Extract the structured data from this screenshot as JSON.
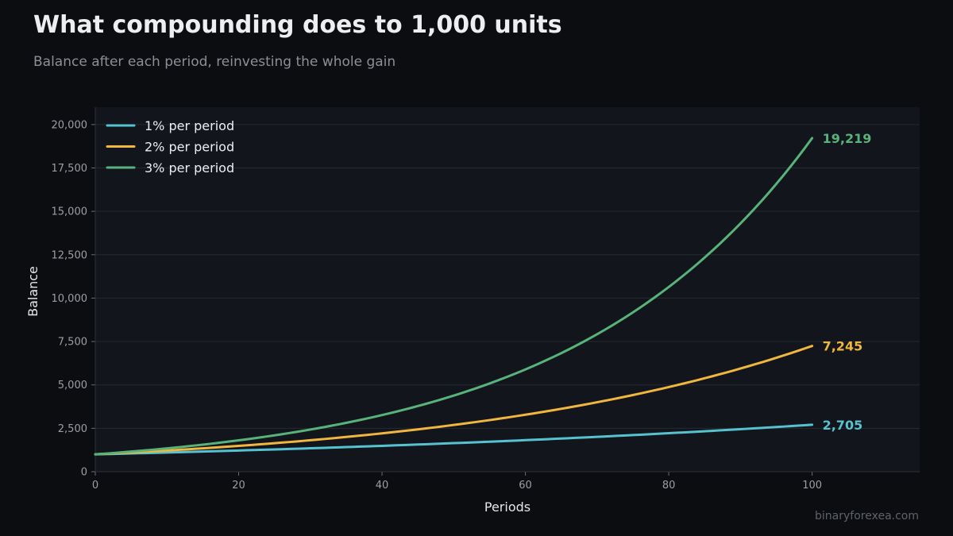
{
  "page": {
    "title": "What compounding does to 1,000 units",
    "subtitle": "Balance after each period, reinvesting the whole gain",
    "footer": "binaryforexea.com"
  },
  "colors": {
    "background": "#0c0d10",
    "plot_background": "#12151b",
    "grid": "#262a31"
  },
  "chart_data": {
    "type": "line",
    "title": "What compounding does to 1,000 units",
    "subtitle": "Balance after each period, reinvesting the whole gain",
    "xlabel": "Periods",
    "ylabel": "Balance",
    "xlim": [
      0,
      115
    ],
    "ylim": [
      0,
      21000
    ],
    "x_ticks": [
      0,
      20,
      40,
      60,
      80,
      100
    ],
    "y_ticks": [
      0,
      2500,
      5000,
      7500,
      10000,
      12500,
      15000,
      17500,
      20000
    ],
    "x_tick_labels": [
      "0",
      "20",
      "40",
      "60",
      "80",
      "100"
    ],
    "y_tick_labels": [
      "0",
      "2,500",
      "5,000",
      "7,500",
      "10,000",
      "12,500",
      "15,000",
      "17,500",
      "20,000"
    ],
    "grid": true,
    "legend_position": "top-left",
    "principal": 1000,
    "periods": 100,
    "x": [
      0,
      10,
      20,
      30,
      40,
      50,
      60,
      70,
      80,
      90,
      100
    ],
    "series": [
      {
        "name": "1% per period",
        "color": "#56c1d0",
        "rate": 0.01,
        "values": [
          1000,
          1105,
          1220,
          1348,
          1489,
          1645,
          1817,
          2007,
          2217,
          2449,
          2705
        ],
        "end_label": "2,705"
      },
      {
        "name": "2% per period",
        "color": "#f0b63e",
        "rate": 0.02,
        "values": [
          1000,
          1219,
          1486,
          1811,
          2208,
          2692,
          3281,
          4000,
          4875,
          5943,
          7245
        ],
        "end_label": "7,245"
      },
      {
        "name": "3% per period",
        "color": "#58b37b",
        "rate": 0.03,
        "values": [
          1000,
          1344,
          1806,
          2427,
          3262,
          4384,
          5892,
          7918,
          10641,
          14300,
          19219
        ],
        "end_label": "19,219"
      }
    ]
  }
}
